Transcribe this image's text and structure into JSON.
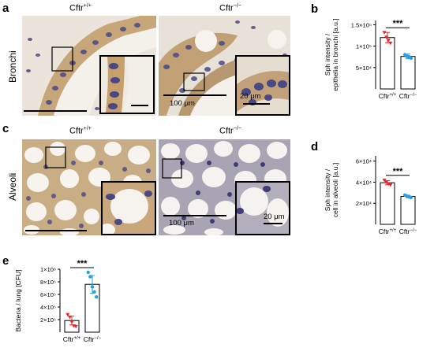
{
  "panels": {
    "a": {
      "letter": "a",
      "row_label": "Bronchi",
      "left_title": "Cftr+/+",
      "right_title": "Cftr−/−",
      "scale_main": "100 μm",
      "scale_inset": "20 μm"
    },
    "c": {
      "letter": "c",
      "row_label": "Alveoli",
      "left_title": "Cftr+/+",
      "right_title": "Cftr−/−",
      "scale_main": "100 μm",
      "scale_inset": "20 μm"
    },
    "b": {
      "letter": "b"
    },
    "d": {
      "letter": "d"
    },
    "e": {
      "letter": "e"
    }
  },
  "labels": {
    "wt_base": "Cftr",
    "wt_sup": "+/+",
    "ko_base": "Cftr",
    "ko_sup": "−/−"
  },
  "colors": {
    "wt": "#e8292c",
    "ko": "#2a9fe0",
    "tissue_bg": "#ece6dd",
    "nuclei": "#4b4a86",
    "brown": "#b98f5a"
  },
  "chart_data": [
    {
      "panel": "b",
      "type": "bar",
      "ylabel_lines": [
        "Sph intensity /",
        "epithelia in bronchi [a.u.]"
      ],
      "yticks": [
        "1.5×10⁵",
        "1×10⁵",
        "5×10⁴"
      ],
      "ytick_values": [
        150000,
        100000,
        50000
      ],
      "ylim": [
        0,
        160000
      ],
      "significance": "***",
      "categories": [
        "Cftr+/+",
        "Cftr−/−"
      ],
      "values": [
        120000,
        76000
      ],
      "errors": [
        12000,
        5500
      ],
      "points": [
        [
          132000,
          121000,
          114000,
          107000
        ],
        [
          80000,
          76000,
          75000,
          72000
        ]
      ]
    },
    {
      "panel": "d",
      "type": "bar",
      "ylabel_lines": [
        "Sph intensity /",
        "cell in alveoli [a.u.]"
      ],
      "yticks": [
        "6×10⁴",
        "4×10⁴",
        "2×10⁴"
      ],
      "ytick_values": [
        60000,
        40000,
        20000
      ],
      "ylim": [
        0,
        65000
      ],
      "significance": "***",
      "categories": [
        "Cftr+/+",
        "Cftr−/−"
      ],
      "values": [
        39500,
        26500
      ],
      "errors": [
        2000,
        1200
      ],
      "points": [
        [
          42000,
          40000,
          38500,
          37500
        ],
        [
          27800,
          26800,
          26000,
          25500
        ]
      ]
    },
    {
      "panel": "e",
      "type": "bar",
      "ylabel_lines": [
        "Bacteria / lung [CFU]"
      ],
      "yticks": [
        "1×10⁶",
        "8×10⁵",
        "6×10⁵",
        "4×10⁵",
        "2×10⁵"
      ],
      "ytick_values": [
        1000000,
        800000,
        600000,
        400000,
        200000
      ],
      "ylim": [
        0,
        1000000
      ],
      "significance": "***",
      "categories": [
        "Cftr+/+",
        "Cftr−/−"
      ],
      "values": [
        185000,
        760000
      ],
      "errors": [
        70000,
        140000
      ],
      "points": [
        [
          280000,
          240000,
          160000,
          100000,
          90000
        ],
        [
          950000,
          880000,
          720000,
          640000,
          560000
        ]
      ]
    }
  ]
}
